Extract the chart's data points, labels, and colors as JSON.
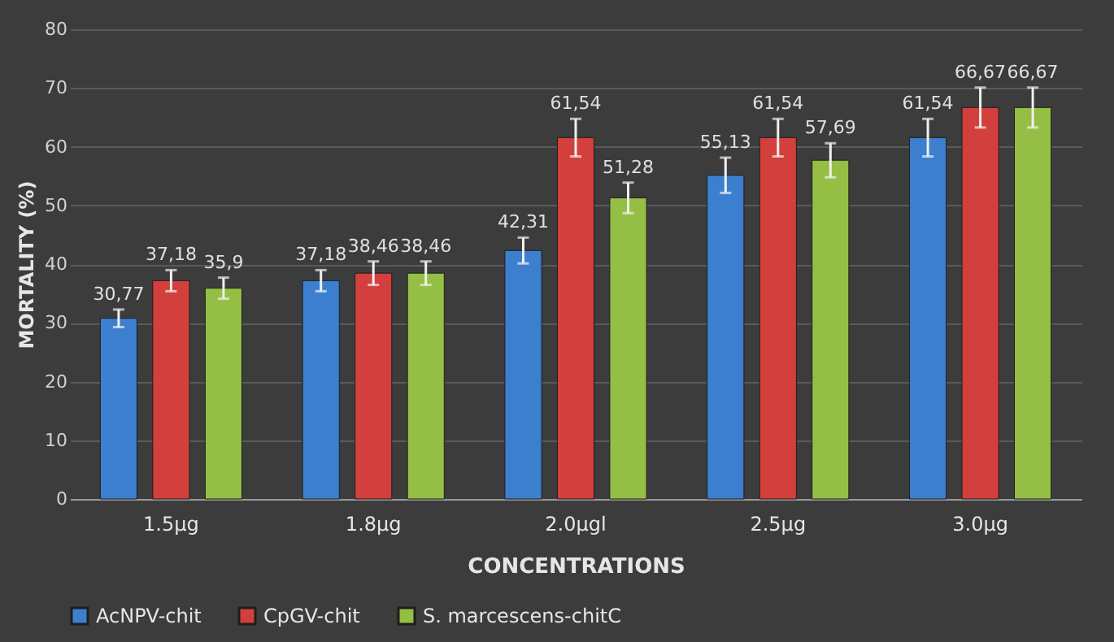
{
  "chart_data": {
    "type": "bar",
    "xlabel": "CONCENTRATIONS",
    "ylabel": "MORTALITY (%)",
    "categories": [
      "1.5µg",
      "1.8µg",
      "2.0µgl",
      "2.5µg",
      "3.0µg"
    ],
    "series": [
      {
        "name": "AcNPV-chit",
        "color": "#3d7fcf",
        "values": [
          30.77,
          37.18,
          42.31,
          55.13,
          61.54
        ],
        "errors": [
          1.5,
          1.8,
          2.2,
          3.0,
          3.2
        ],
        "value_labels": [
          "30,77",
          "37,18",
          "42,31",
          "55,13",
          "61,54"
        ]
      },
      {
        "name": "CpGV-chit",
        "color": "#d23f3c",
        "values": [
          37.18,
          38.46,
          61.54,
          61.54,
          66.67
        ],
        "errors": [
          1.8,
          2.0,
          3.2,
          3.2,
          3.4
        ],
        "value_labels": [
          "37,18",
          "38,46",
          "61,54",
          "61,54",
          "66,67"
        ]
      },
      {
        "name": "S. marcescens-chitC",
        "color": "#95bf44",
        "values": [
          35.9,
          38.46,
          51.28,
          57.69,
          66.67
        ],
        "errors": [
          1.8,
          2.0,
          2.6,
          2.9,
          3.4
        ],
        "value_labels": [
          "35,9",
          "38,46",
          "51,28",
          "57,69",
          "66,67"
        ]
      }
    ],
    "ylim": [
      0,
      80
    ],
    "yticks": [
      0,
      10,
      20,
      30,
      40,
      50,
      60,
      70,
      80
    ],
    "grid": "y",
    "legend": "bottom"
  }
}
